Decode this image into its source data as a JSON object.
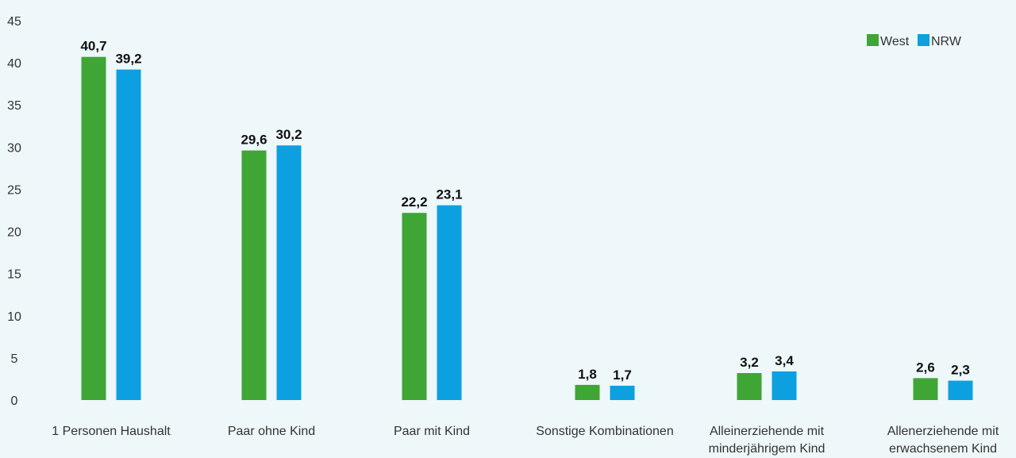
{
  "chart_data": {
    "type": "bar",
    "categories": [
      [
        "1 Personen Haushalt"
      ],
      [
        "Paar ohne Kind"
      ],
      [
        "Paar mit Kind"
      ],
      [
        "Sonstige Kombinationen"
      ],
      [
        "Alleinerziehende mit",
        "minderjährigem Kind"
      ],
      [
        "Allenerziehende mit",
        "erwachsenem Kind"
      ]
    ],
    "series": [
      {
        "name": "West",
        "color": "#3fa535",
        "values": [
          40.7,
          29.6,
          22.2,
          1.8,
          3.2,
          2.6
        ],
        "labels": [
          "40,7",
          "29,6",
          "22,2",
          "1,8",
          "3,2",
          "2,6"
        ]
      },
      {
        "name": "NRW",
        "color": "#0ca0e0",
        "values": [
          39.2,
          30.2,
          23.1,
          1.7,
          3.4,
          2.3
        ],
        "labels": [
          "39,2",
          "30,2",
          "23,1",
          "1,7",
          "3,4",
          "2,3"
        ]
      }
    ],
    "ylim": [
      0,
      45
    ],
    "yticks": [
      0,
      5,
      10,
      15,
      20,
      25,
      30,
      35,
      40,
      45
    ],
    "grid": false,
    "legend_position": "top-right",
    "title": "",
    "xlabel": "",
    "ylabel": ""
  }
}
